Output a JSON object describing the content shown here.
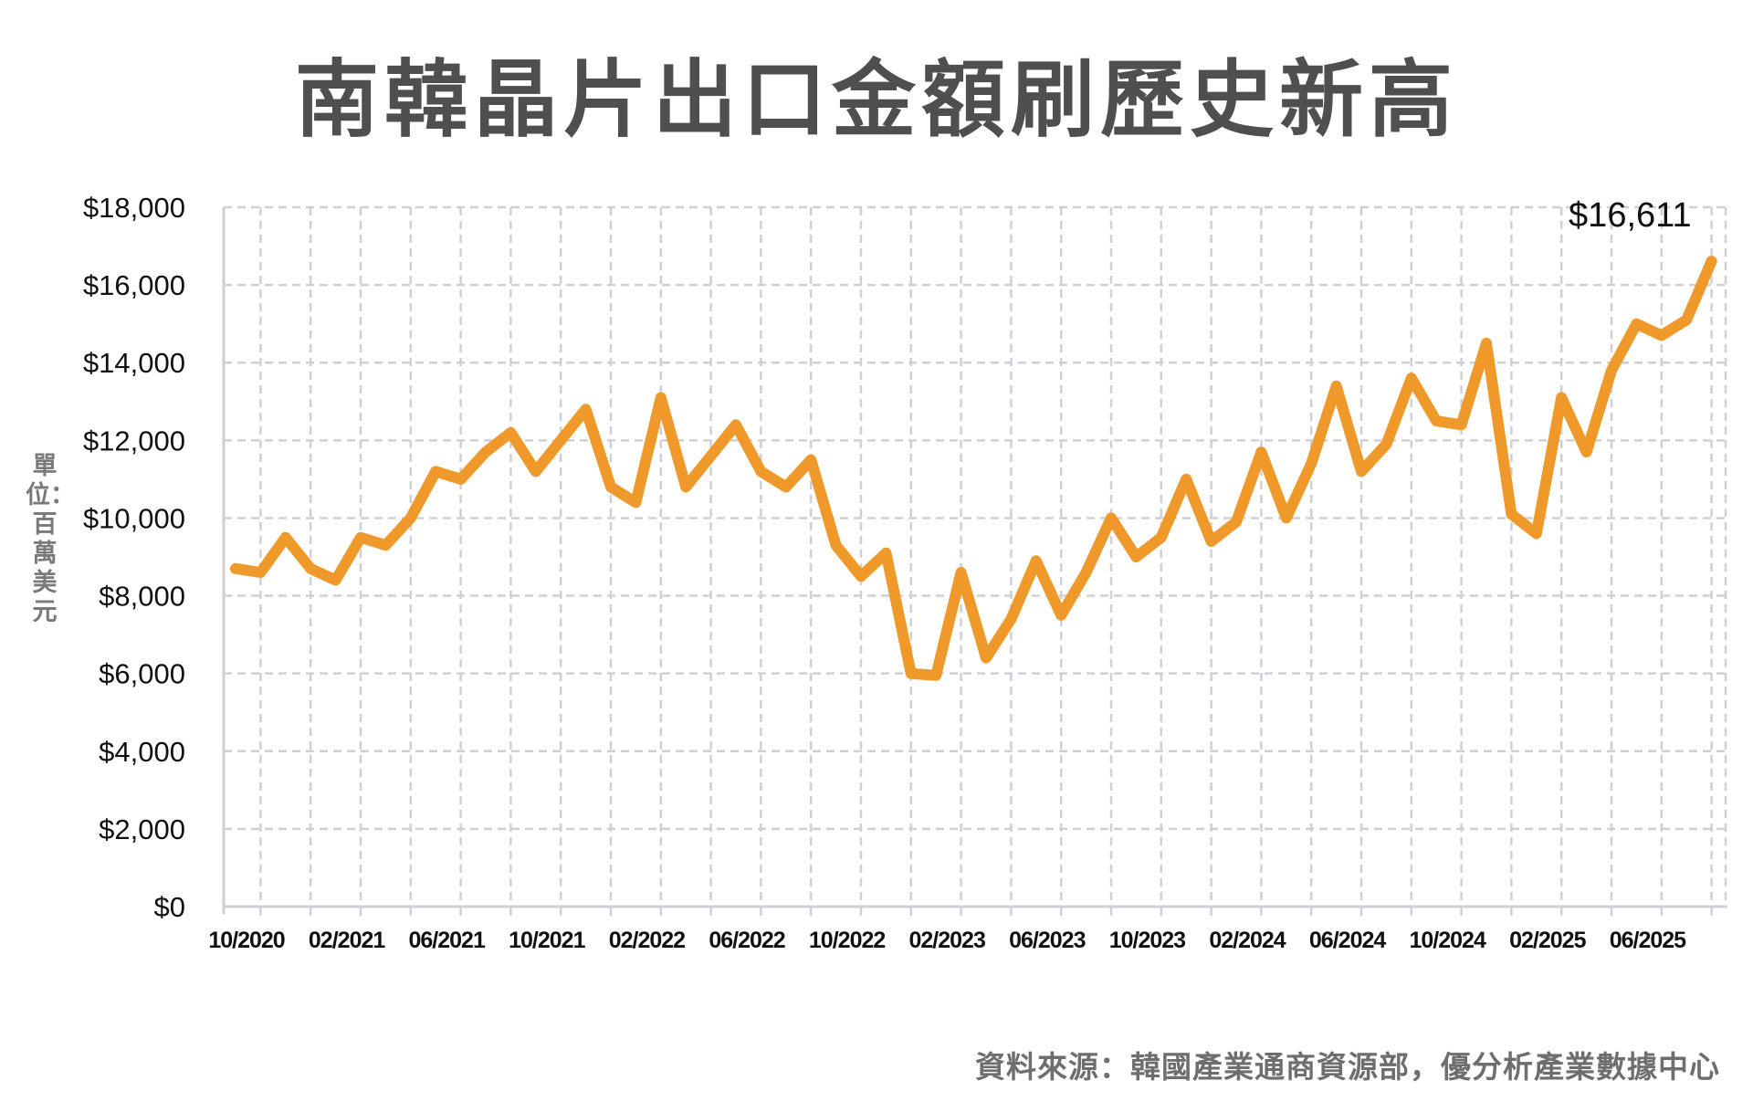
{
  "title": "南韓晶片出口金額刷歷史新高",
  "ylabel": "單位：百萬美元",
  "source": "資料來源：韓國產業通商資源部，優分析產業數據中心",
  "colors": {
    "line": "#F0992B",
    "grid": "#cfcfd6",
    "axis": "#cfcfd6",
    "title": "#4f4f4f"
  },
  "chart_data": {
    "type": "line",
    "title": "南韓晶片出口金額刷歷史新高",
    "xlabel": "",
    "ylabel": "單位：百萬美元",
    "ylim": [
      0,
      18000
    ],
    "grid": true,
    "y_ticks": [
      "$0",
      "$2,000",
      "$4,000",
      "$6,000",
      "$8,000",
      "$10,000",
      "$12,000",
      "$14,000",
      "$16,000",
      "$18,000"
    ],
    "x_ticks": [
      "10/2020",
      "02/2021",
      "06/2021",
      "10/2021",
      "02/2022",
      "06/2022",
      "10/2022",
      "02/2023",
      "06/2023",
      "10/2023",
      "02/2024",
      "06/2024",
      "10/2024",
      "02/2025",
      "06/2025"
    ],
    "x": [
      "10/2020",
      "11/2020",
      "12/2020",
      "01/2021",
      "02/2021",
      "03/2021",
      "04/2021",
      "05/2021",
      "06/2021",
      "07/2021",
      "08/2021",
      "09/2021",
      "10/2021",
      "11/2021",
      "12/2021",
      "01/2022",
      "02/2022",
      "03/2022",
      "04/2022",
      "05/2022",
      "06/2022",
      "07/2022",
      "08/2022",
      "09/2022",
      "10/2022",
      "11/2022",
      "12/2022",
      "01/2023",
      "02/2023",
      "03/2023",
      "04/2023",
      "05/2023",
      "06/2023",
      "07/2023",
      "08/2023",
      "09/2023",
      "10/2023",
      "11/2023",
      "12/2023",
      "01/2024",
      "02/2024",
      "03/2024",
      "04/2024",
      "05/2024",
      "06/2024",
      "07/2024",
      "08/2024",
      "09/2024",
      "10/2024",
      "11/2024",
      "12/2024",
      "01/2025",
      "02/2025",
      "03/2025",
      "04/2025",
      "05/2025",
      "06/2025",
      "07/2025",
      "08/2025",
      "09/2025"
    ],
    "series": [
      {
        "values": [
          8700,
          8600,
          9500,
          8700,
          8400,
          9500,
          9300,
          10000,
          11200,
          11000,
          11700,
          12200,
          11200,
          12000,
          12800,
          10800,
          10400,
          13100,
          10800,
          11600,
          12400,
          11200,
          10800,
          11500,
          9300,
          8500,
          9100,
          6000,
          5950,
          8600,
          6400,
          7400,
          8900,
          7500,
          8600,
          10000,
          9000,
          9500,
          11000,
          9400,
          9900,
          11700,
          10000,
          11400,
          13400,
          11200,
          11900,
          13600,
          12500,
          12400,
          14500,
          10100,
          9600,
          13100,
          11700,
          13800,
          15000,
          14700,
          15100,
          16611
        ]
      }
    ],
    "annotations": [
      {
        "text": "$16,611",
        "x": "09/2025",
        "y": 16611
      }
    ]
  }
}
